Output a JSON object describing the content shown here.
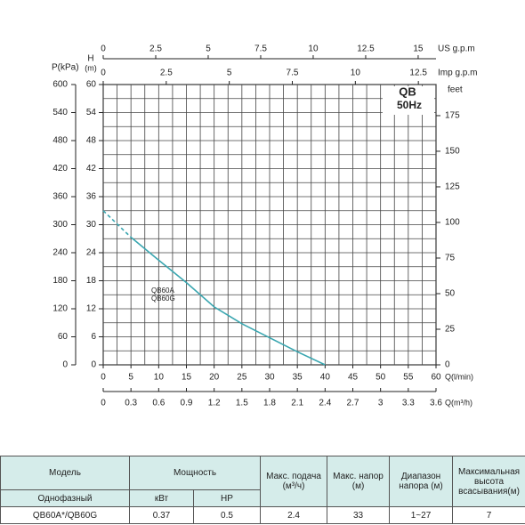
{
  "chart_data": {
    "type": "line",
    "title_lines": [
      "QB",
      "50Hz"
    ],
    "annotation_lines": [
      "QB60A",
      "QB60G"
    ],
    "xlabel": "Q(l/min)",
    "x2label": "Q(m³/h)",
    "x3label": "US  g.p.m",
    "x4label": "Imp  g.p.m",
    "ylabel_lines": [
      "H",
      "(m)"
    ],
    "y2label": "P(kPa)",
    "y3label": "feet",
    "series": [
      {
        "color": "#3aa6b0",
        "style": "dashed",
        "x": [
          0,
          5
        ],
        "values": [
          33,
          27.3
        ]
      },
      {
        "color": "#3aa6b0",
        "style": "solid",
        "x": [
          5,
          10,
          15,
          20,
          25,
          30,
          35,
          40
        ],
        "values": [
          27.3,
          22.4,
          17.6,
          12.4,
          8.8,
          5.8,
          2.8,
          0
        ]
      }
    ],
    "xlim": [
      0,
      60
    ],
    "xticks": [
      0,
      5,
      10,
      15,
      20,
      25,
      30,
      35,
      40,
      45,
      50,
      55,
      60
    ],
    "x2lim": [
      0,
      3.6
    ],
    "x2ticks": [
      0,
      0.3,
      0.6,
      0.9,
      1.2,
      1.5,
      1.8,
      2.1,
      2.4,
      2.7,
      3,
      3.3,
      3.6
    ],
    "x3lim": [
      0,
      15.85
    ],
    "x3ticks": [
      0,
      2.5,
      5,
      7.5,
      10,
      12.5,
      15
    ],
    "x4lim": [
      0,
      13.2
    ],
    "x4ticks": [
      0,
      2.5,
      5,
      7.5,
      10,
      12.5
    ],
    "ylim": [
      0,
      60
    ],
    "yticks": [
      0,
      6,
      12,
      18,
      24,
      30,
      36,
      42,
      48,
      54,
      60
    ],
    "y2lim": [
      0,
      600
    ],
    "y2ticks": [
      0,
      60,
      120,
      180,
      240,
      300,
      360,
      420,
      480,
      540,
      600
    ],
    "y3lim": [
      0,
      196.85
    ],
    "y3ticks": [
      0,
      25,
      50,
      75,
      100,
      125,
      150,
      175
    ],
    "grid": true
  },
  "table": {
    "header": [
      "Модель",
      "Мощность",
      "Макс. подача (м³/ч)",
      "Макс. напор (м)",
      "Диапазон напора (м)",
      "Максимальная высота всасывания(м)"
    ],
    "subheader": [
      "Однофазный",
      "кВт",
      "HP"
    ],
    "rows": [
      [
        "QB60A*/QB60G",
        "0.37",
        "0.5",
        "2.4",
        "33",
        "1~27",
        "7"
      ]
    ]
  }
}
